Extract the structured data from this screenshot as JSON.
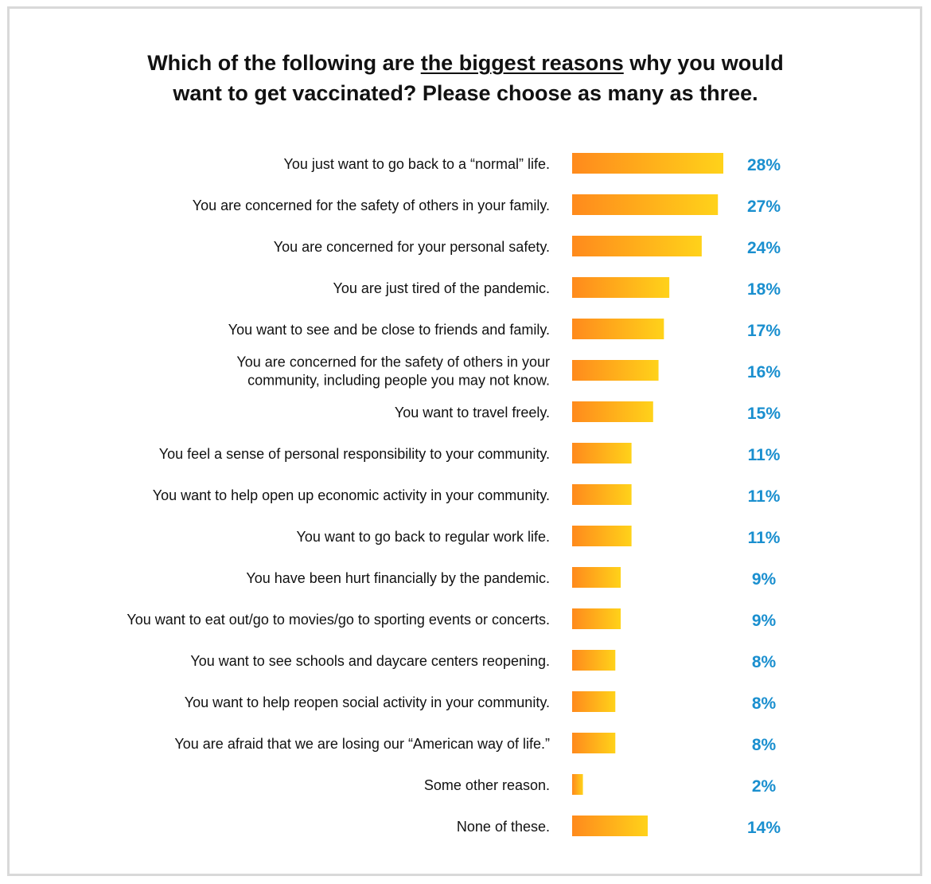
{
  "title": {
    "line1_before": "Which of the following are ",
    "line1_emphasis": "the biggest reasons",
    "line1_after": " why you would",
    "line2": "want to get vaccinated? Please choose as many as three."
  },
  "colors": {
    "bar_start": "#ff8a1c",
    "bar_end": "#ffd21a",
    "value_label": "#1a8fcf",
    "frame_border": "#d9d9d9"
  },
  "chart_data": {
    "type": "bar",
    "orientation": "horizontal",
    "unit": "%",
    "xlim": [
      0,
      28
    ],
    "grid": false,
    "legend": "none",
    "categories": [
      [
        "You just want to go back to a “normal” life."
      ],
      [
        "You are concerned for the safety of others in your family."
      ],
      [
        "You are concerned for your personal safety."
      ],
      [
        "You are just tired of the pandemic."
      ],
      [
        "You want to see and be close to friends and family."
      ],
      [
        "You are concerned for the safety of others in your",
        "community, including people you may not know."
      ],
      [
        "You want to travel freely."
      ],
      [
        "You feel a sense of personal responsibility to your community."
      ],
      [
        "You want to help open up economic activity in your community."
      ],
      [
        "You want to go back to regular work life."
      ],
      [
        "You have been hurt financially by the pandemic."
      ],
      [
        "You want to eat out/go to movies/go to sporting events or concerts."
      ],
      [
        "You want to see schools and daycare centers reopening."
      ],
      [
        "You want to help reopen social activity in your community."
      ],
      [
        "You are afraid that we are losing our “American way of life.”"
      ],
      [
        "Some other reason."
      ],
      [
        "None of these."
      ]
    ],
    "values": [
      28,
      27,
      24,
      18,
      17,
      16,
      15,
      11,
      11,
      11,
      9,
      9,
      8,
      8,
      8,
      2,
      14
    ],
    "value_labels": [
      "28%",
      "27%",
      "24%",
      "18%",
      "17%",
      "16%",
      "15%",
      "11%",
      "11%",
      "11%",
      "9%",
      "9%",
      "8%",
      "8%",
      "8%",
      "2%",
      "14%"
    ]
  }
}
